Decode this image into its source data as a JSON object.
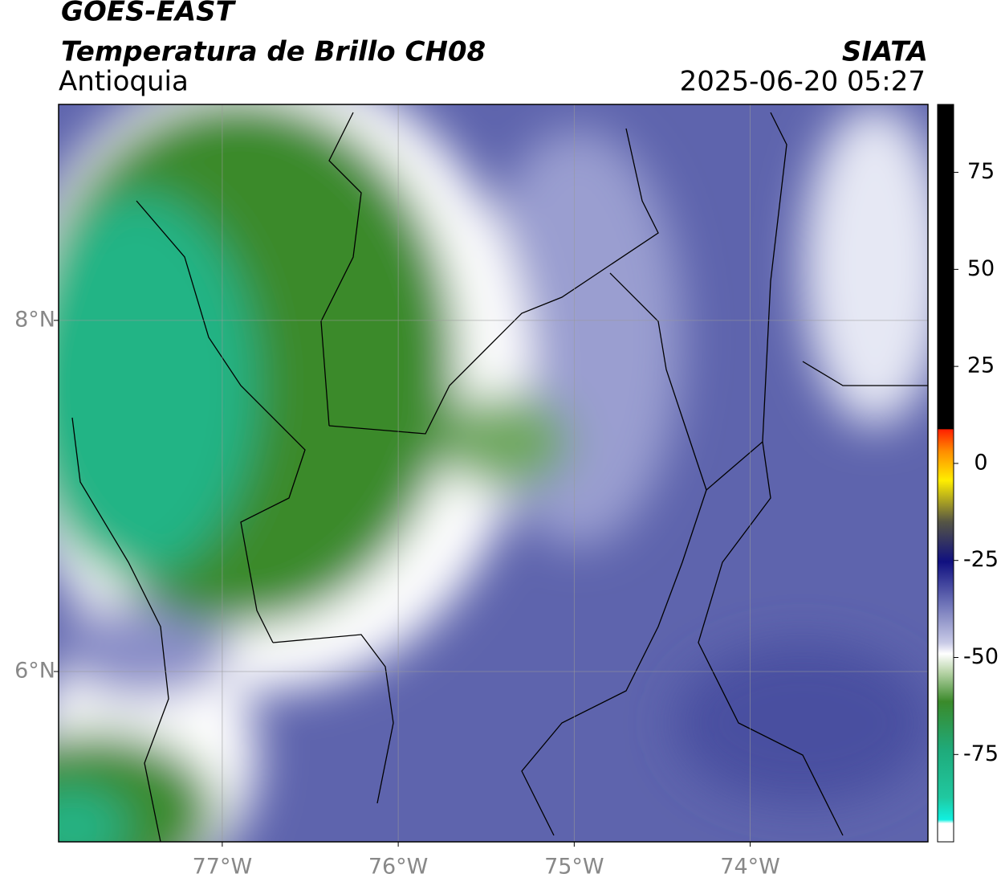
{
  "header": {
    "title": "GOES-EAST",
    "subtitle": "Temperatura de Brillo CH08",
    "region": "Antioquia",
    "source": "SIATA",
    "timestamp": "2025-06-20 05:27"
  },
  "map": {
    "lonlim": [
      -77.93,
      -72.99
    ],
    "latlim": [
      5.03,
      9.23
    ],
    "lonticks": [
      {
        "value": -77,
        "label": "77°W"
      },
      {
        "value": -76,
        "label": "76°W"
      },
      {
        "value": -75,
        "label": "75°W"
      },
      {
        "value": -74,
        "label": "74°W"
      }
    ],
    "latticks": [
      {
        "value": 8,
        "label": "8°N"
      },
      {
        "value": 6,
        "label": "6°N"
      }
    ]
  },
  "colorbar": {
    "lim": [
      -97.5,
      92.5
    ],
    "ticks": [
      75,
      50,
      25,
      0,
      -25,
      -50,
      -75
    ]
  }
}
